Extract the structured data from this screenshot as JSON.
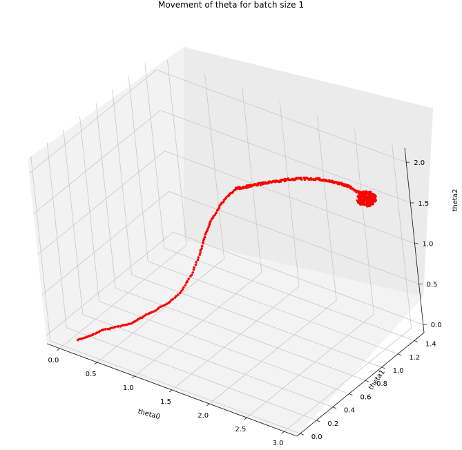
{
  "chart_data": {
    "type": "scatter",
    "title": "Movement of theta for batch size 1",
    "xlabel": "theta0",
    "ylabel": "theta1",
    "zlabel": "theta2",
    "x_ticks": [
      "0.0",
      "0.5",
      "1.0",
      "1.5",
      "2.0",
      "2.5",
      "3.0"
    ],
    "y_ticks": [
      "0.0",
      "0.2",
      "0.4",
      "0.6",
      "0.8",
      "1.0",
      "1.2",
      "1.4"
    ],
    "z_ticks": [
      "0.0",
      "0.5",
      "1.0",
      "1.5",
      "2.0"
    ],
    "grid": true,
    "marker_color": "#ff0000",
    "path": [
      {
        "x": 0.22,
        "y": 0.0,
        "z": 0.05
      },
      {
        "x": 0.35,
        "y": 0.02,
        "z": 0.12
      },
      {
        "x": 0.5,
        "y": 0.05,
        "z": 0.22
      },
      {
        "x": 0.68,
        "y": 0.08,
        "z": 0.3
      },
      {
        "x": 0.85,
        "y": 0.1,
        "z": 0.38
      },
      {
        "x": 0.98,
        "y": 0.13,
        "z": 0.48
      },
      {
        "x": 1.12,
        "y": 0.16,
        "z": 0.58
      },
      {
        "x": 1.28,
        "y": 0.2,
        "z": 0.7
      },
      {
        "x": 1.42,
        "y": 0.25,
        "z": 0.85
      },
      {
        "x": 1.52,
        "y": 0.3,
        "z": 1.05
      },
      {
        "x": 1.6,
        "y": 0.35,
        "z": 1.28
      },
      {
        "x": 1.66,
        "y": 0.38,
        "z": 1.5
      },
      {
        "x": 1.72,
        "y": 0.42,
        "z": 1.68
      },
      {
        "x": 1.78,
        "y": 0.48,
        "z": 1.82
      },
      {
        "x": 1.83,
        "y": 0.55,
        "z": 1.92
      },
      {
        "x": 1.88,
        "y": 0.62,
        "z": 1.97
      },
      {
        "x": 1.97,
        "y": 0.72,
        "z": 1.96
      },
      {
        "x": 2.1,
        "y": 0.85,
        "z": 1.94
      },
      {
        "x": 2.25,
        "y": 1.0,
        "z": 1.91
      },
      {
        "x": 2.4,
        "y": 1.12,
        "z": 1.86
      },
      {
        "x": 2.53,
        "y": 1.2,
        "z": 1.8
      },
      {
        "x": 2.65,
        "y": 1.26,
        "z": 1.74
      },
      {
        "x": 2.75,
        "y": 1.3,
        "z": 1.66
      },
      {
        "x": 2.8,
        "y": 1.33,
        "z": 1.58
      }
    ],
    "cluster": {
      "x": 2.8,
      "y": 1.33,
      "z": 1.58
    }
  }
}
